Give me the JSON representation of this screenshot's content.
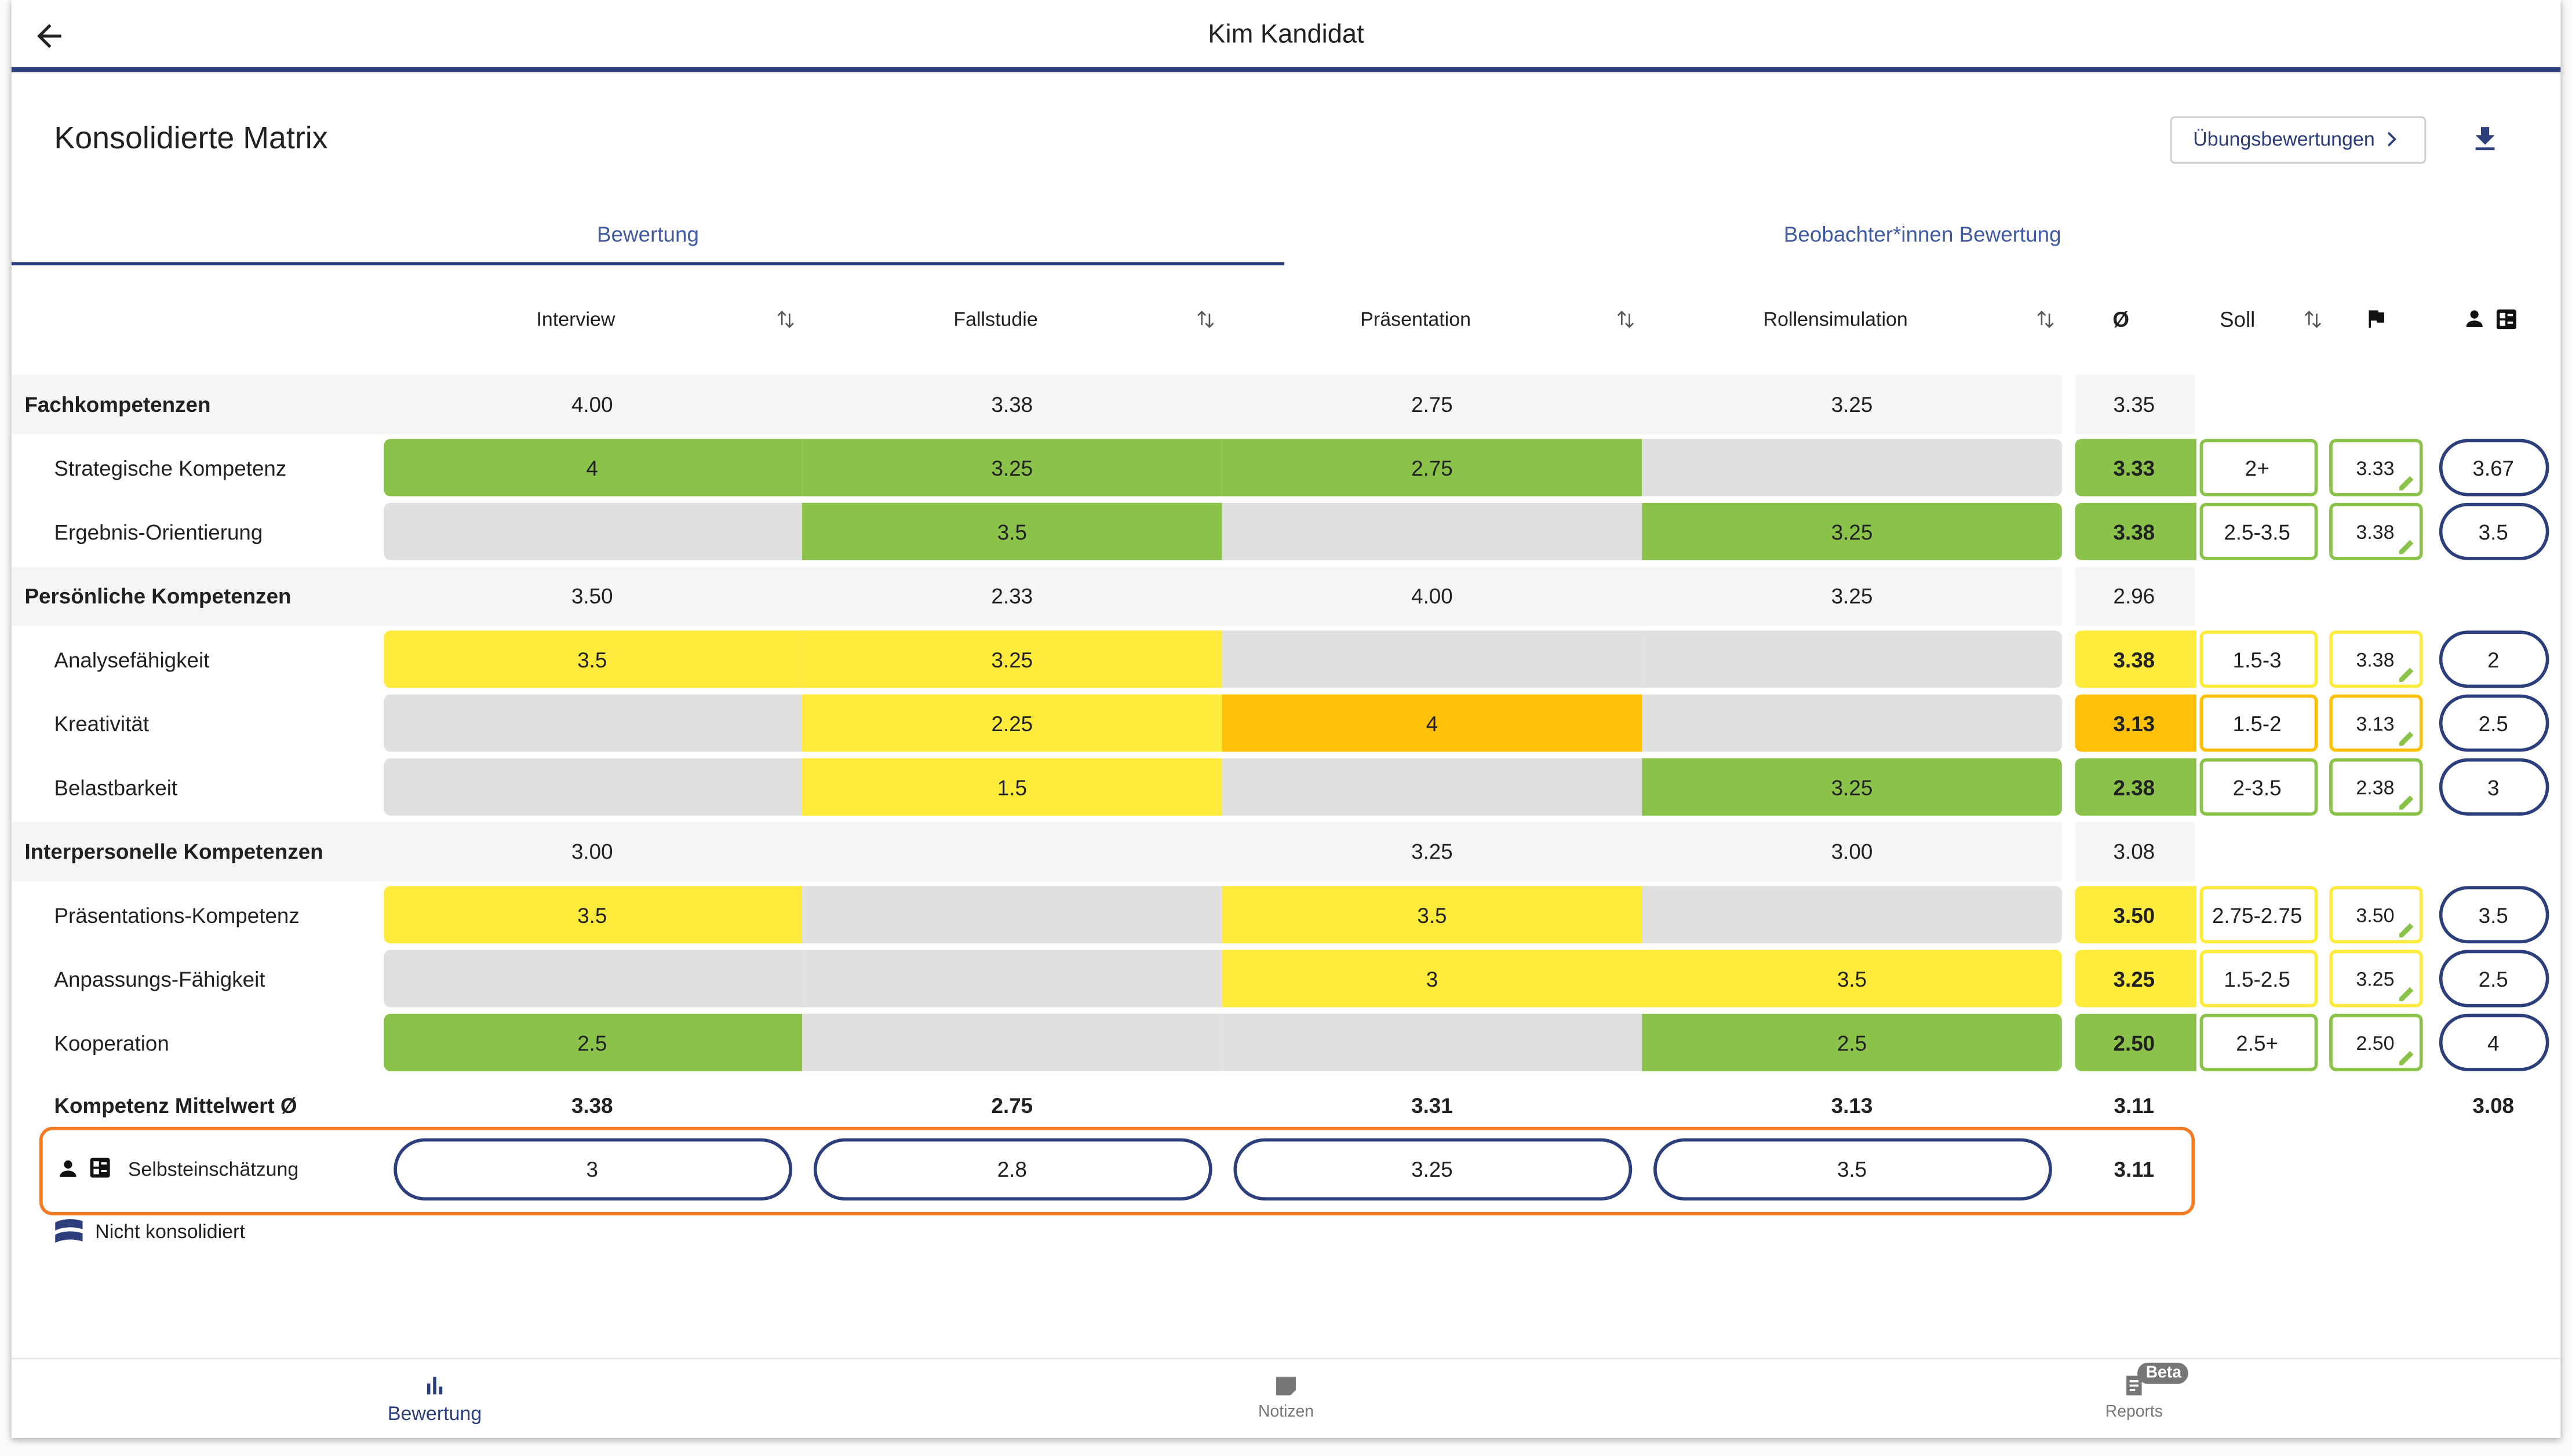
{
  "header": {
    "title": "Kim Kandidat"
  },
  "page": {
    "title": "Konsolidierte Matrix",
    "button": "Übungsbewertungen"
  },
  "tabs": [
    "Bewertung",
    "Beobachter*innen Bewertung"
  ],
  "columns": {
    "exercises": [
      "Interview",
      "Fallstudie",
      "Präsentation",
      "Rollensimulation"
    ],
    "avg": "Ø",
    "soll": "Soll"
  },
  "groups": [
    {
      "name": "Fachkompetenzen",
      "values": [
        "4.00",
        "3.38",
        "2.75",
        "3.25"
      ],
      "avg": "3.35",
      "rows": [
        {
          "name": "Strategische Kompetenz",
          "cells": [
            {
              "value": "4",
              "color": "#8bc34a"
            },
            {
              "value": "3.25",
              "color": "#8bc34a"
            },
            {
              "value": "2.75",
              "color": "#8bc34a"
            },
            {
              "value": null,
              "color": "#e0e0e0"
            }
          ],
          "avg": "3.33",
          "color": "#8bc34a",
          "soll": "2+",
          "observer": "3.33",
          "self": "3.67"
        },
        {
          "name": "Ergebnis-Orientierung",
          "cells": [
            {
              "value": null,
              "color": "#e0e0e0"
            },
            {
              "value": "3.5",
              "color": "#8bc34a"
            },
            {
              "value": null,
              "color": "#e0e0e0"
            },
            {
              "value": "3.25",
              "color": "#8bc34a"
            }
          ],
          "avg": "3.38",
          "color": "#8bc34a",
          "soll": "2.5-3.5",
          "observer": "3.38",
          "self": "3.5"
        }
      ]
    },
    {
      "name": "Persönliche Kompetenzen",
      "values": [
        "3.50",
        "2.33",
        "4.00",
        "3.25"
      ],
      "avg": "2.96",
      "rows": [
        {
          "name": "Analysefähigkeit",
          "cells": [
            {
              "value": "3.5",
              "color": "#ffeb3b"
            },
            {
              "value": "3.25",
              "color": "#ffeb3b"
            },
            {
              "value": null,
              "color": "#e0e0e0"
            },
            {
              "value": null,
              "color": "#e0e0e0"
            }
          ],
          "avg": "3.38",
          "color": "#ffeb3b",
          "soll": "1.5-3",
          "observer": "3.38",
          "self": "2"
        },
        {
          "name": "Kreativität",
          "cells": [
            {
              "value": null,
              "color": "#e0e0e0"
            },
            {
              "value": "2.25",
              "color": "#ffeb3b"
            },
            {
              "value": "4",
              "color": "#ffc107"
            },
            {
              "value": null,
              "color": "#e0e0e0"
            }
          ],
          "avg": "3.13",
          "color": "#ffc107",
          "soll": "1.5-2",
          "observer": "3.13",
          "self": "2.5"
        },
        {
          "name": "Belastbarkeit",
          "cells": [
            {
              "value": null,
              "color": "#e0e0e0"
            },
            {
              "value": "1.5",
              "color": "#ffeb3b"
            },
            {
              "value": null,
              "color": "#e0e0e0"
            },
            {
              "value": "3.25",
              "color": "#8bc34a"
            }
          ],
          "avg": "2.38",
          "color": "#8bc34a",
          "soll": "2-3.5",
          "observer": "2.38",
          "self": "3"
        }
      ]
    },
    {
      "name": "Interpersonelle Kompetenzen",
      "values": [
        "3.00",
        null,
        "3.25",
        "3.00"
      ],
      "avg": "3.08",
      "rows": [
        {
          "name": "Präsentations-Kompetenz",
          "cells": [
            {
              "value": "3.5",
              "color": "#ffeb3b"
            },
            {
              "value": null,
              "color": "#e0e0e0"
            },
            {
              "value": "3.5",
              "color": "#ffeb3b"
            },
            {
              "value": null,
              "color": "#e0e0e0"
            }
          ],
          "avg": "3.50",
          "color": "#ffeb3b",
          "soll": "2.75-2.75",
          "observer": "3.50",
          "self": "3.5"
        },
        {
          "name": "Anpassungs-Fähigkeit",
          "cells": [
            {
              "value": null,
              "color": "#e0e0e0"
            },
            {
              "value": null,
              "color": "#e0e0e0"
            },
            {
              "value": "3",
              "color": "#ffeb3b"
            },
            {
              "value": "3.5",
              "color": "#ffeb3b"
            }
          ],
          "avg": "3.25",
          "color": "#ffeb3b",
          "soll": "1.5-2.5",
          "observer": "3.25",
          "self": "2.5"
        },
        {
          "name": "Kooperation",
          "cells": [
            {
              "value": "2.5",
              "color": "#8bc34a"
            },
            {
              "value": null,
              "color": "#e0e0e0"
            },
            {
              "value": null,
              "color": "#e0e0e0"
            },
            {
              "value": "2.5",
              "color": "#8bc34a"
            }
          ],
          "avg": "2.50",
          "color": "#8bc34a",
          "soll": "2.5+",
          "observer": "2.50",
          "self": "4"
        }
      ]
    }
  ],
  "mean": {
    "name": "Kompetenz Mittelwert Ø",
    "values": [
      "3.38",
      "2.75",
      "3.31",
      "3.13"
    ],
    "avg": "3.11",
    "self": "3.08"
  },
  "self_assessment": {
    "name": "Selbsteinschätzung",
    "values": [
      "3",
      "2.8",
      "3.25",
      "3.5"
    ],
    "avg": "3.11"
  },
  "legend": "Nicht konsolidiert",
  "nav": {
    "items": [
      "Bewertung",
      "Notizen",
      "Reports"
    ],
    "badge": "Beta"
  }
}
